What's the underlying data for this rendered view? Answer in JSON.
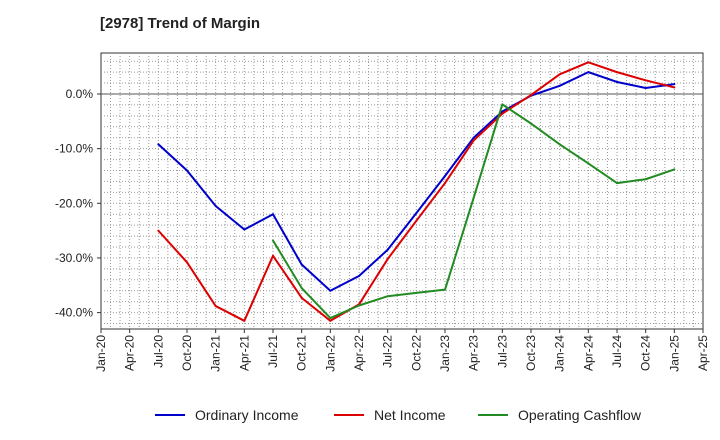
{
  "chart_data": {
    "type": "line",
    "title": "[2978]  Trend of Margin",
    "xlabel": "",
    "ylabel": "",
    "ylim": [
      -43,
      7.5
    ],
    "yticks": [
      0,
      -10,
      -20,
      -30,
      -40
    ],
    "ytick_labels": [
      "0.0%",
      "-10.0%",
      "-20.0%",
      "-30.0%",
      "-40.0%"
    ],
    "x_ticks": [
      "Jan-20",
      "Apr-20",
      "Jul-20",
      "Oct-20",
      "Jan-21",
      "Apr-21",
      "Jul-21",
      "Oct-21",
      "Jan-22",
      "Apr-22",
      "Jul-22",
      "Oct-22",
      "Jan-23",
      "Apr-23",
      "Jul-23",
      "Oct-23",
      "Jan-24",
      "Apr-24",
      "Jul-24",
      "Oct-24",
      "Jan-25",
      "Apr-25"
    ],
    "grid": true,
    "legend_position": "bottom",
    "series": [
      {
        "name": "Ordinary Income",
        "color": "#0000cc",
        "points": [
          {
            "x": "Jul-20",
            "y": -9.2
          },
          {
            "x": "Oct-20",
            "y": -14.0
          },
          {
            "x": "Jan-21",
            "y": -20.5
          },
          {
            "x": "Apr-21",
            "y": -24.8
          },
          {
            "x": "Jul-21",
            "y": -22.0
          },
          {
            "x": "Oct-21",
            "y": -31.2
          },
          {
            "x": "Jan-22",
            "y": -36.0
          },
          {
            "x": "Apr-22",
            "y": -33.3
          },
          {
            "x": "Jul-22",
            "y": -28.5
          },
          {
            "x": "Oct-22",
            "y": -21.8
          },
          {
            "x": "Jan-23",
            "y": -15.0
          },
          {
            "x": "Apr-23",
            "y": -8.0
          },
          {
            "x": "Jul-23",
            "y": -3.2
          },
          {
            "x": "Oct-23",
            "y": -0.3
          },
          {
            "x": "Jan-24",
            "y": 1.5
          },
          {
            "x": "Apr-24",
            "y": 4.0
          },
          {
            "x": "Jul-24",
            "y": 2.2
          },
          {
            "x": "Oct-24",
            "y": 1.1
          },
          {
            "x": "Jan-25",
            "y": 1.8
          }
        ]
      },
      {
        "name": "Net Income",
        "color": "#dd0000",
        "points": [
          {
            "x": "Jul-20",
            "y": -25.0
          },
          {
            "x": "Oct-20",
            "y": -30.8
          },
          {
            "x": "Jan-21",
            "y": -38.8
          },
          {
            "x": "Apr-21",
            "y": -41.5
          },
          {
            "x": "Jul-21",
            "y": -29.6
          },
          {
            "x": "Oct-21",
            "y": -37.3
          },
          {
            "x": "Jan-22",
            "y": -41.5
          },
          {
            "x": "Apr-22",
            "y": -38.5
          },
          {
            "x": "Jul-22",
            "y": -30.2
          },
          {
            "x": "Oct-22",
            "y": -23.2
          },
          {
            "x": "Jan-23",
            "y": -16.3
          },
          {
            "x": "Apr-23",
            "y": -8.5
          },
          {
            "x": "Jul-23",
            "y": -3.6
          },
          {
            "x": "Oct-23",
            "y": -0.2
          },
          {
            "x": "Jan-24",
            "y": 3.6
          },
          {
            "x": "Apr-24",
            "y": 5.8
          },
          {
            "x": "Jul-24",
            "y": 4.0
          },
          {
            "x": "Oct-24",
            "y": 2.5
          },
          {
            "x": "Jan-25",
            "y": 1.2
          }
        ]
      },
      {
        "name": "Operating Cashflow",
        "color": "#228b22",
        "points": [
          {
            "x": "Jul-21",
            "y": -26.8
          },
          {
            "x": "Oct-21",
            "y": -35.5
          },
          {
            "x": "Jan-22",
            "y": -41.0
          },
          {
            "x": "Apr-22",
            "y": -38.7
          },
          {
            "x": "Jul-22",
            "y": -37.0
          },
          {
            "x": "Oct-22",
            "y": -36.4
          },
          {
            "x": "Jan-23",
            "y": -35.8
          },
          {
            "x": "Apr-23",
            "y": -19.0
          },
          {
            "x": "Jul-23",
            "y": -1.9
          },
          {
            "x": "Oct-23",
            "y": -5.4
          },
          {
            "x": "Jan-24",
            "y": -9.2
          },
          {
            "x": "Apr-24",
            "y": -12.7
          },
          {
            "x": "Jul-24",
            "y": -16.3
          },
          {
            "x": "Oct-24",
            "y": -15.6
          },
          {
            "x": "Jan-25",
            "y": -13.8
          }
        ]
      }
    ]
  }
}
